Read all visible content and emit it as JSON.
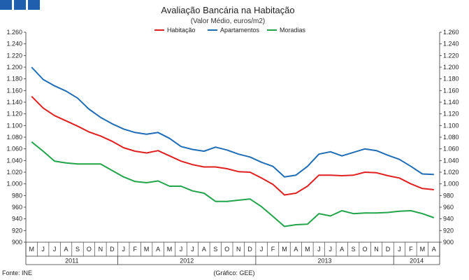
{
  "chart_data": {
    "type": "line",
    "title": "Avaliação Bancária na Habitação",
    "subtitle": "(Valor Médio, euros/m2)",
    "ylim": [
      900,
      1260
    ],
    "ytick_step": 20,
    "yticks_format": "thousands-dot",
    "grid": false,
    "legend": "top",
    "x": [
      "M",
      "J",
      "J",
      "A",
      "S",
      "O",
      "N",
      "D",
      "J",
      "F",
      "M",
      "A",
      "M",
      "J",
      "J",
      "A",
      "S",
      "O",
      "N",
      "D",
      "J",
      "F",
      "M",
      "A",
      "M",
      "J",
      "J",
      "A",
      "S",
      "O",
      "N",
      "D",
      "J",
      "F",
      "M",
      "A"
    ],
    "years": [
      {
        "label": "2011",
        "start": 0,
        "end": 7
      },
      {
        "label": "2012",
        "start": 8,
        "end": 19
      },
      {
        "label": "2013",
        "start": 20,
        "end": 31
      },
      {
        "label": "2014",
        "start": 32,
        "end": 35
      }
    ],
    "series": [
      {
        "name": "Habitação",
        "color": "#e02020",
        "values": [
          1150,
          1130,
          1117,
          1108,
          1099,
          1089,
          1082,
          1073,
          1062,
          1056,
          1053,
          1057,
          1048,
          1039,
          1033,
          1029,
          1029,
          1026,
          1021,
          1020,
          1010,
          999,
          981,
          984,
          996,
          1015,
          1015,
          1014,
          1015,
          1020,
          1019,
          1014,
          1010,
          1000,
          992,
          990
        ]
      },
      {
        "name": "Apartamentos",
        "color": "#1f6db5",
        "values": [
          1200,
          1179,
          1168,
          1159,
          1147,
          1128,
          1114,
          1103,
          1094,
          1088,
          1085,
          1088,
          1078,
          1064,
          1059,
          1056,
          1063,
          1058,
          1051,
          1046,
          1037,
          1030,
          1012,
          1015,
          1030,
          1051,
          1055,
          1048,
          1054,
          1060,
          1057,
          1049,
          1042,
          1030,
          1017,
          1016
        ]
      },
      {
        "name": "Moradias",
        "color": "#22a44a",
        "values": [
          1072,
          1056,
          1039,
          1036,
          1034,
          1034,
          1034,
          1023,
          1012,
          1004,
          1002,
          1005,
          996,
          996,
          988,
          984,
          970,
          970,
          972,
          974,
          961,
          944,
          927,
          930,
          931,
          949,
          945,
          954,
          949,
          950,
          950,
          951,
          953,
          954,
          949,
          942
        ]
      }
    ]
  },
  "footer": {
    "source": "Fonte: INE",
    "credit": "(Gráfico: GEE)"
  }
}
